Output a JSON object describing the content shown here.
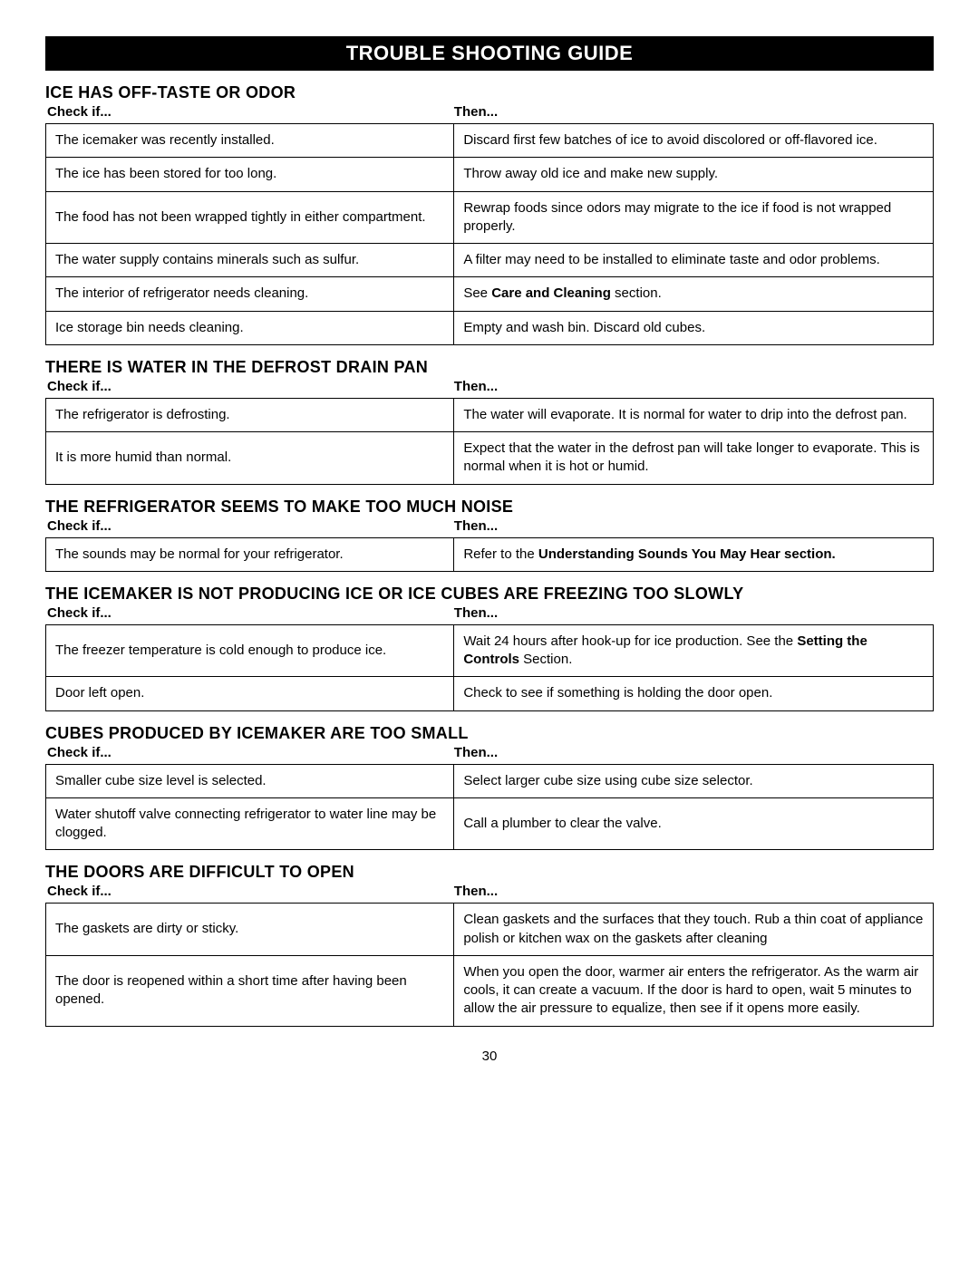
{
  "title": "TROUBLE SHOOTING GUIDE",
  "checkLabel": "Check if...",
  "thenLabel": "Then...",
  "pageNumber": "30",
  "sections": [
    {
      "heading": "ICE HAS OFF-TASTE OR ODOR",
      "rows": [
        {
          "check": "The icemaker was recently installed.",
          "then": "Discard first few batches of ice to avoid discolored or off-flavored ice."
        },
        {
          "check": "The ice has been stored for too long.",
          "then": "Throw away old ice and make new supply."
        },
        {
          "check": "The food has not been wrapped tightly in either compartment.",
          "then": "Rewrap foods since odors may migrate to the ice if food is not wrapped properly."
        },
        {
          "check": "The water supply contains minerals such as sulfur.",
          "then": "A filter may need to be installed to eliminate taste and odor problems."
        },
        {
          "check": "The interior of refrigerator needs cleaning.",
          "then": "See <strong class=\"inline\">Care and Cleaning</strong> section."
        },
        {
          "check": "Ice storage bin needs cleaning.",
          "then": "Empty and wash bin. Discard old cubes."
        }
      ]
    },
    {
      "heading": "THERE IS WATER IN THE DEFROST DRAIN PAN",
      "rows": [
        {
          "check": "The refrigerator is defrosting.",
          "then": "The water will evaporate. It is normal for water to drip into the defrost pan."
        },
        {
          "check": "It is more humid than normal.",
          "then": "Expect that the water in the defrost pan will take longer to evaporate. This is normal when it is hot or humid."
        }
      ]
    },
    {
      "heading": "THE REFRIGERATOR SEEMS TO MAKE TOO MUCH NOISE",
      "rows": [
        {
          "check": "The sounds may be normal for your refrigerator.",
          "then": "Refer to the <strong class=\"inline\">Understanding Sounds You May Hear section.</strong>"
        }
      ]
    },
    {
      "heading": "THE ICEMAKER IS NOT PRODUCING ICE OR ICE CUBES ARE FREEZING TOO SLOWLY",
      "rows": [
        {
          "check": "The freezer temperature is cold enough to produce ice.",
          "then": "Wait 24 hours after hook-up for ice production. See the <strong class=\"inline\">Setting the Controls</strong> Section."
        },
        {
          "check": "Door left open.",
          "then": "Check to see if something is holding the door open."
        }
      ]
    },
    {
      "heading": "CUBES PRODUCED BY ICEMAKER ARE TOO SMALL",
      "rows": [
        {
          "check": "Smaller cube size level is selected.",
          "then": "Select larger cube size using cube size selector."
        },
        {
          "check": "Water shutoff valve connecting refrigerator to water line may be clogged.",
          "then": "Call a plumber to clear the valve."
        }
      ]
    },
    {
      "heading": "THE DOORS ARE DIFFICULT TO OPEN",
      "rows": [
        {
          "check": "The gaskets are dirty or sticky.",
          "then": "Clean gaskets and the surfaces that they touch. Rub a thin coat of appliance polish or kitchen wax on the gaskets after cleaning"
        },
        {
          "check": "The door is reopened within a short time after having been opened.",
          "then": "When you open the door, warmer air enters the refrigerator. As the warm air cools, it can create a vacuum. If the door is hard to open, wait 5 minutes to allow the air pressure to equalize, then see if it opens more easily."
        }
      ]
    }
  ]
}
